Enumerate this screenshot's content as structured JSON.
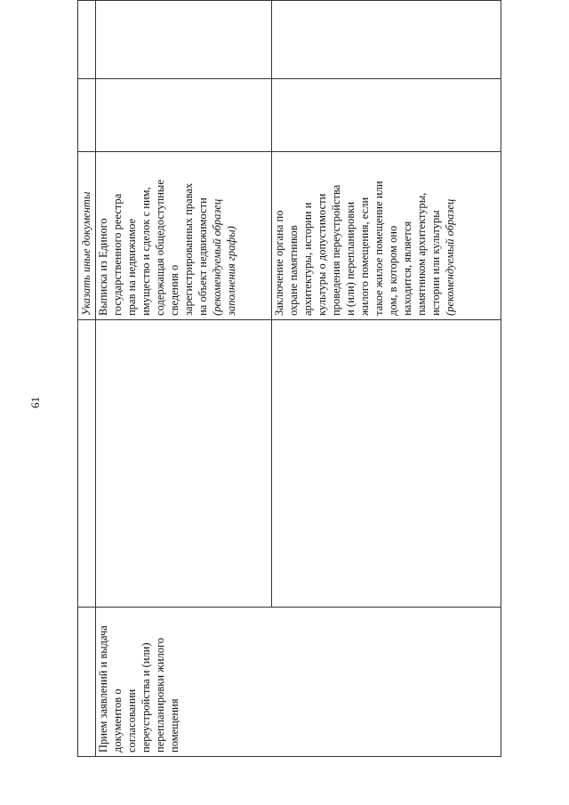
{
  "page_number": "61",
  "table": {
    "header_row": {
      "col3": "Указать иные документы"
    },
    "procedure": "Прием заявлений и выдача\nдокументов о\nсогласовании\nпереустройства и (или)\nперепланировки жилого\nпомещения",
    "documents": [
      {
        "text": "Выписка из Единого\nгосударственного реестра\nправ на недвижимое\nимущество и сделок с ним,\nсодержащая общедоступные\nсведения о\nзарегистрированных правах\nна объект недвижимости",
        "note": "(рекомендуемый образец\nзаполнения графы)"
      },
      {
        "text": "Заключение органа по\nохране памятников\nархитектуры, истории и\nкультуры о допустимости\nпроведения переустройства\nи (или) перепланировки\nжилого помещения, если\nтакое жилое помещение или\nдом, в котором оно\nнаходится, является\nпамятником архитектуры,\nистории или культуры",
        "note": "(рекомендуемый образец"
      }
    ]
  }
}
